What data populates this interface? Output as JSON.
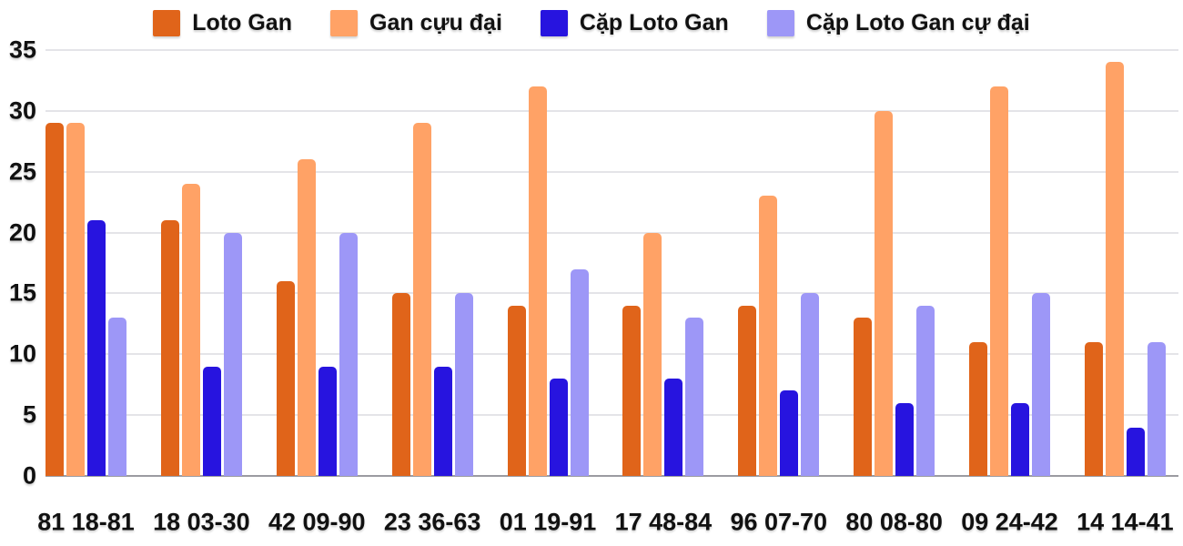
{
  "chart_data": {
    "type": "bar",
    "title": "",
    "xlabel": "",
    "ylabel": "",
    "ylim": [
      0,
      35
    ],
    "yticks": [
      0,
      5,
      10,
      15,
      20,
      25,
      30,
      35
    ],
    "grid": true,
    "legend_position": "top",
    "categories": [
      "81 18-81",
      "18 03-30",
      "42 09-90",
      "23 36-63",
      "01 19-91",
      "17 48-84",
      "96 07-70",
      "80 08-80",
      "09 24-42",
      "14 14-41"
    ],
    "series": [
      {
        "name": "Loto Gan",
        "color": "#e0641a",
        "values": [
          29,
          21,
          16,
          15,
          14,
          14,
          14,
          13,
          11,
          11
        ]
      },
      {
        "name": "Gan cựu đại",
        "color": "#ffa266",
        "values": [
          29,
          24,
          26,
          29,
          32,
          20,
          23,
          30,
          32,
          34
        ]
      },
      {
        "name": "Cặp Loto Gan",
        "color": "#2714df",
        "values": [
          21,
          9,
          9,
          9,
          8,
          8,
          7,
          6,
          6,
          4
        ]
      },
      {
        "name": "Cặp Loto Gan cự đại",
        "color": "#9d97f7",
        "values": [
          13,
          20,
          20,
          15,
          17,
          13,
          15,
          14,
          15,
          11
        ]
      }
    ],
    "colors": {
      "grid": "#e4e4e8",
      "axis": "#9b9ba1",
      "text": "#111111",
      "background": "#ffffff"
    }
  }
}
